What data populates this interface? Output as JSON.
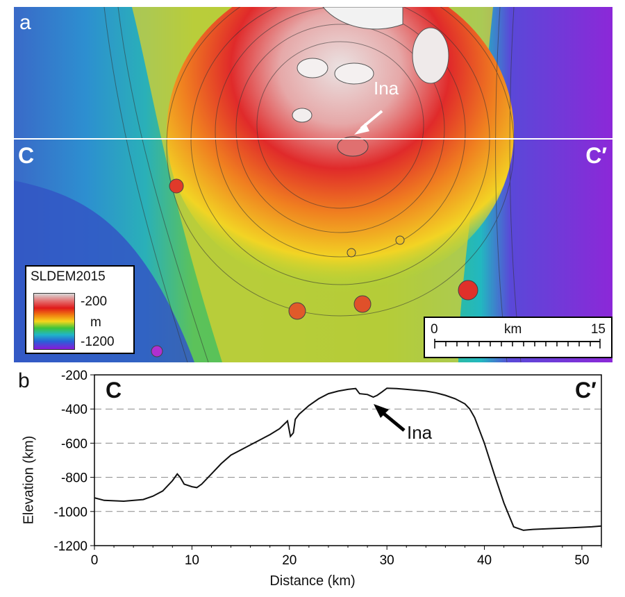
{
  "panel_a": {
    "letter": "a",
    "profile_start": "C",
    "profile_end": "C′",
    "feature_label": "Ina",
    "legend": {
      "title": "SLDEM2015",
      "max": "-200",
      "unit": "m",
      "min": "-1200"
    },
    "scale_bar": {
      "start": "0",
      "unit": "km",
      "end": "15"
    },
    "colors": {
      "profile_line": "#ffffff",
      "summit": "#e8dede",
      "rim_red": "#e02020",
      "east_plain": "#8c28d8",
      "west_plain": "#2e5cc8"
    }
  },
  "panel_b": {
    "letter": "b",
    "profile_start": "C",
    "profile_end": "C′",
    "feature_label": "Ina"
  },
  "chart_data": {
    "type": "line",
    "title": "",
    "xlabel": "Distance (km)",
    "ylabel": "Elevation (km)",
    "xlim": [
      0,
      52
    ],
    "ylim": [
      -1200,
      -200
    ],
    "xticks": [
      0,
      10,
      20,
      30,
      40,
      50
    ],
    "yticks": [
      -200,
      -400,
      -600,
      -800,
      -1000,
      -1200
    ],
    "grid": "dashed horizontal at -400, -600, -800, -1000",
    "annotation": {
      "text": "Ina",
      "x": 29,
      "y": -330
    },
    "series": [
      {
        "x": [
          0,
          1,
          3,
          5,
          6,
          7,
          8,
          8.5,
          8.8,
          9.2,
          10,
          10.5,
          11,
          12,
          13,
          14,
          15,
          16,
          17,
          18,
          19,
          19.8,
          20.1,
          20.4,
          20.6,
          21,
          22,
          23,
          24,
          25,
          26,
          26.8,
          27.2,
          28,
          28.6,
          29,
          29.5,
          30,
          31,
          32,
          33,
          34,
          35,
          36,
          37,
          38,
          38.5,
          39,
          40,
          41,
          42,
          43,
          44,
          45,
          47,
          49,
          51,
          52
        ],
        "y": [
          -920,
          -935,
          -940,
          -930,
          -910,
          -880,
          -820,
          -780,
          -800,
          -840,
          -855,
          -860,
          -840,
          -780,
          -720,
          -670,
          -640,
          -610,
          -580,
          -550,
          -515,
          -470,
          -560,
          -540,
          -460,
          -430,
          -380,
          -340,
          -310,
          -295,
          -285,
          -280,
          -310,
          -315,
          -330,
          -320,
          -300,
          -278,
          -280,
          -285,
          -290,
          -295,
          -305,
          -320,
          -340,
          -370,
          -400,
          -450,
          -600,
          -780,
          -950,
          -1090,
          -1110,
          -1105,
          -1100,
          -1095,
          -1090,
          -1085
        ]
      }
    ]
  }
}
